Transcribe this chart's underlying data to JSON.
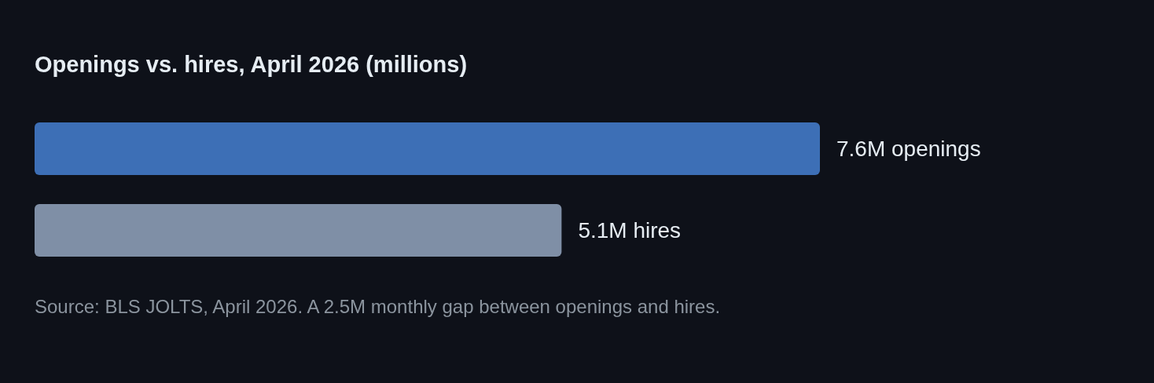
{
  "chart_data": {
    "type": "bar",
    "orientation": "horizontal",
    "title": "Openings vs. hires, April 2026 (millions)",
    "categories": [
      null,
      null
    ],
    "values": [
      7.6,
      5.1
    ],
    "colors": [
      "#3d6fb6",
      "#7f8fa6"
    ],
    "value_labels": [
      "7.6M openings",
      "5.1M hires"
    ],
    "annotations": [
      "Source: BLS JOLTS, April 2026. A 2.5M monthly gap between openings and hires."
    ]
  }
}
